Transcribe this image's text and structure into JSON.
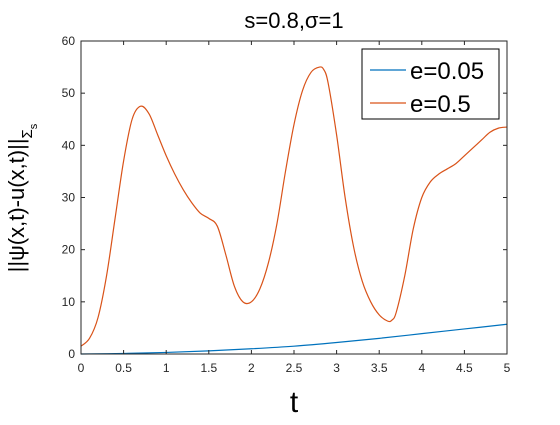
{
  "chart_data": {
    "type": "line",
    "title": "s=0.8,σ=1",
    "xlabel": "t",
    "ylabel": {
      "main": "||ψ(x,t)-u(x,t)||",
      "sub": "Σ",
      "subsub": "s"
    },
    "xlim": [
      0,
      5
    ],
    "ylim": [
      0,
      60
    ],
    "xticks": [
      0,
      0.5,
      1,
      1.5,
      2,
      2.5,
      3,
      3.5,
      4,
      4.5,
      5
    ],
    "xtick_labels": [
      "0",
      "0.5",
      "1",
      "1.5",
      "2",
      "2.5",
      "3",
      "3.5",
      "4",
      "4.5",
      "5"
    ],
    "yticks": [
      0,
      10,
      20,
      30,
      40,
      50,
      60
    ],
    "ytick_labels": [
      "0",
      "10",
      "20",
      "30",
      "40",
      "50",
      "60"
    ],
    "grid": false,
    "legend_position": "top-right",
    "series": [
      {
        "name": "e=0.05",
        "color": "#0072bd",
        "x": [
          0,
          0.5,
          1,
          1.5,
          2,
          2.5,
          3,
          3.5,
          4,
          4.5,
          5
        ],
        "y": [
          0,
          0.1,
          0.3,
          0.6,
          1.0,
          1.5,
          2.2,
          3.0,
          3.9,
          4.8,
          5.7
        ]
      },
      {
        "name": "e=0.5",
        "color": "#d95319",
        "x": [
          0,
          0.1,
          0.2,
          0.3,
          0.4,
          0.5,
          0.6,
          0.7,
          0.8,
          0.9,
          1.0,
          1.1,
          1.2,
          1.3,
          1.4,
          1.5,
          1.6,
          1.7,
          1.8,
          1.9,
          2.0,
          2.1,
          2.2,
          2.3,
          2.4,
          2.5,
          2.6,
          2.7,
          2.8,
          2.85,
          2.9,
          3.0,
          3.1,
          3.2,
          3.3,
          3.4,
          3.5,
          3.6,
          3.65,
          3.7,
          3.8,
          3.9,
          4.0,
          4.1,
          4.2,
          4.3,
          4.4,
          4.5,
          4.6,
          4.7,
          4.8,
          4.9,
          5.0
        ],
        "y": [
          1.5,
          3.0,
          7.0,
          15.0,
          26.0,
          37.0,
          45.0,
          47.5,
          46.0,
          42.0,
          38.0,
          34.5,
          31.5,
          29.0,
          27.0,
          26.0,
          24.5,
          19.0,
          13.0,
          10.0,
          10.0,
          12.5,
          17.5,
          25.0,
          35.0,
          44.0,
          50.5,
          54.0,
          55.0,
          54.5,
          52.0,
          42.0,
          30.0,
          20.5,
          14.0,
          10.0,
          7.5,
          6.3,
          6.5,
          8.0,
          15.0,
          24.0,
          30.0,
          33.0,
          34.5,
          35.5,
          36.5,
          38.0,
          39.5,
          41.0,
          42.5,
          43.3,
          43.5
        ]
      }
    ]
  }
}
